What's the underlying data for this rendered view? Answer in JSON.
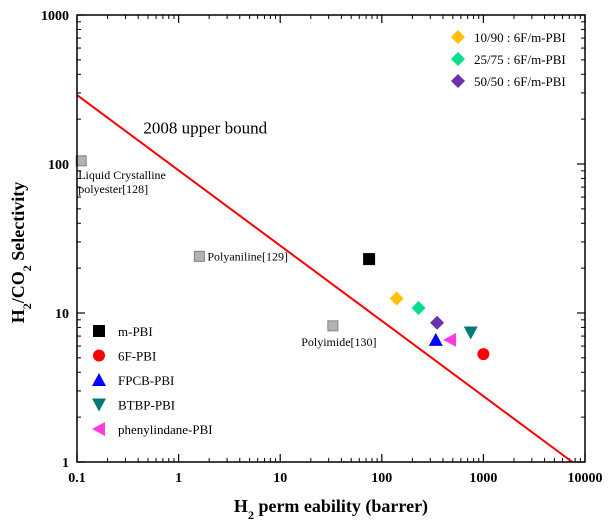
{
  "chart_data": {
    "type": "scatter",
    "xscale": "log",
    "yscale": "log",
    "xlim": [
      0.1,
      10000
    ],
    "ylim": [
      1,
      1000
    ],
    "xlabel_main": "H",
    "xlabel_sub": "2",
    "xlabel_rest": " perm eability (barrer)",
    "ylabel_main": "H",
    "ylabel_sub1": "2",
    "ylabel_mid": "/CO",
    "ylabel_sub2": "2",
    "ylabel_rest": " Selectivity",
    "x_ticks": [
      {
        "value": 0.1,
        "label": "0.1"
      },
      {
        "value": 1,
        "label": "1"
      },
      {
        "value": 10,
        "label": "10"
      },
      {
        "value": 100,
        "label": "100"
      },
      {
        "value": 1000,
        "label": "1000"
      },
      {
        "value": 10000,
        "label": "10000"
      }
    ],
    "y_ticks": [
      {
        "value": 1,
        "label": "1"
      },
      {
        "value": 10,
        "label": "10"
      },
      {
        "value": 100,
        "label": "100"
      },
      {
        "value": 1000,
        "label": "1000"
      }
    ],
    "upper_bound": {
      "label": "2008 upper bound",
      "x": [
        0.1,
        7500
      ],
      "y": [
        290,
        1
      ],
      "color": "#ff0000"
    },
    "reference_points": [
      {
        "name": "Liquid Crystalline polyester[128]",
        "label_lines": [
          "Liquid Crystalline",
          "polyester[128]"
        ],
        "x": 0.11,
        "y": 105
      },
      {
        "name": "Polyaniline[129]",
        "label_lines": [
          "Polyaniline[129]"
        ],
        "x": 1.6,
        "y": 24
      },
      {
        "name": "Polyimide[130]",
        "label_lines": [
          "Polyimide[130]"
        ],
        "x": 33,
        "y": 8.2
      }
    ],
    "series": [
      {
        "name": "m-PBI",
        "marker": "square",
        "color": "#000000",
        "points": [
          {
            "x": 75,
            "y": 23
          }
        ]
      },
      {
        "name": "6F-PBI",
        "marker": "circle",
        "color": "#ff0000",
        "points": [
          {
            "x": 1000,
            "y": 5.3
          }
        ]
      },
      {
        "name": "FPCB-PBI",
        "marker": "triangle-up",
        "color": "#0000ff",
        "points": [
          {
            "x": 340,
            "y": 6.6
          }
        ]
      },
      {
        "name": "BTBP-PBI",
        "marker": "triangle-down",
        "color": "#007a78",
        "points": [
          {
            "x": 750,
            "y": 7.4
          }
        ]
      },
      {
        "name": "phenylindane-PBI",
        "marker": "triangle-left",
        "color": "#ff3ddd",
        "points": [
          {
            "x": 470,
            "y": 6.6
          }
        ]
      },
      {
        "name": "10/90 : 6F/m-PBI",
        "marker": "diamond",
        "color": "#ffc000",
        "points": [
          {
            "x": 140,
            "y": 12.5
          }
        ]
      },
      {
        "name": "25/75 : 6F/m-PBI",
        "marker": "diamond",
        "color": "#00e08c",
        "points": [
          {
            "x": 230,
            "y": 10.8
          }
        ]
      },
      {
        "name": "50/50 : 6F/m-PBI",
        "marker": "diamond",
        "color": "#6a30b0",
        "points": [
          {
            "x": 350,
            "y": 8.6
          }
        ]
      }
    ],
    "legend_left": [
      "m-PBI",
      "6F-PBI",
      "FPCB-PBI",
      "BTBP-PBI",
      "phenylindane-PBI"
    ],
    "legend_right": [
      "10/90 : 6F/m-PBI",
      "25/75 : 6F/m-PBI",
      "50/50 : 6F/m-PBI"
    ],
    "grid": false
  }
}
